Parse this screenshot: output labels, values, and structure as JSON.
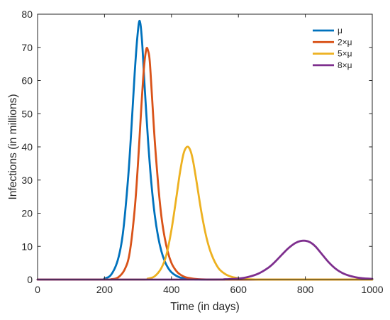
{
  "chart_data": {
    "type": "line",
    "title": "",
    "xlabel": "Time (in days)",
    "ylabel": "Infections (in millions)",
    "xlim": [
      0,
      1000
    ],
    "ylim": [
      0,
      80
    ],
    "xticks": [
      0,
      200,
      400,
      600,
      800,
      1000
    ],
    "yticks": [
      0,
      10,
      20,
      30,
      40,
      50,
      60,
      70,
      80
    ],
    "grid": false,
    "legend_position": "top-right",
    "series": [
      {
        "name": "μ",
        "color": "#0072BD",
        "x": [
          0,
          180,
          200,
          220,
          240,
          255,
          270,
          280,
          290,
          298,
          305,
          312,
          320,
          330,
          340,
          350,
          360,
          370,
          380,
          390,
          400,
          415,
          430,
          450,
          480,
          520,
          600,
          800,
          1000
        ],
        "y": [
          0,
          0,
          0.3,
          1.5,
          6,
          14,
          30,
          45,
          62,
          73,
          78,
          72,
          58,
          42,
          29,
          19.5,
          13,
          8.5,
          5.5,
          3.5,
          2.2,
          1.1,
          0.5,
          0.2,
          0.05,
          0,
          0,
          0,
          0
        ]
      },
      {
        "name": "2×μ",
        "color": "#D95319",
        "x": [
          0,
          200,
          220,
          240,
          260,
          275,
          290,
          300,
          310,
          318,
          325,
          330,
          335,
          342,
          350,
          360,
          370,
          380,
          390,
          400,
          410,
          420,
          435,
          450,
          480,
          520,
          600,
          800,
          1000
        ],
        "y": [
          0,
          0,
          0.1,
          0.6,
          3,
          8,
          21,
          35,
          52,
          64,
          69.5,
          69,
          66,
          55,
          42,
          29,
          19,
          12.5,
          8,
          5,
          3.2,
          2,
          1,
          0.5,
          0.1,
          0,
          0,
          0,
          0
        ]
      },
      {
        "name": "5×μ",
        "color": "#EDB120",
        "x": [
          0,
          300,
          330,
          350,
          370,
          385,
          400,
          415,
          425,
          435,
          442,
          450,
          458,
          465,
          475,
          490,
          505,
          520,
          540,
          560,
          580,
          600,
          630,
          660,
          700,
          800,
          1000
        ],
        "y": [
          0,
          0,
          0.3,
          1,
          3.5,
          7.5,
          15,
          25,
          32,
          37.5,
          39.5,
          40,
          38.5,
          35.5,
          29.5,
          20,
          12.5,
          7.5,
          3.5,
          1.7,
          0.8,
          0.4,
          0.1,
          0,
          0,
          0,
          0
        ]
      },
      {
        "name": "8×μ",
        "color": "#7E2F8E",
        "x": [
          0,
          500,
          560,
          600,
          630,
          660,
          690,
          710,
          730,
          750,
          770,
          785,
          800,
          815,
          830,
          850,
          870,
          890,
          910,
          930,
          950,
          970,
          1000
        ],
        "y": [
          0,
          0,
          0.1,
          0.3,
          0.8,
          1.8,
          3.6,
          5.4,
          7.5,
          9.5,
          11,
          11.6,
          11.7,
          11.2,
          10,
          7.6,
          5.2,
          3.3,
          2,
          1.2,
          0.7,
          0.4,
          0.2
        ]
      }
    ]
  }
}
